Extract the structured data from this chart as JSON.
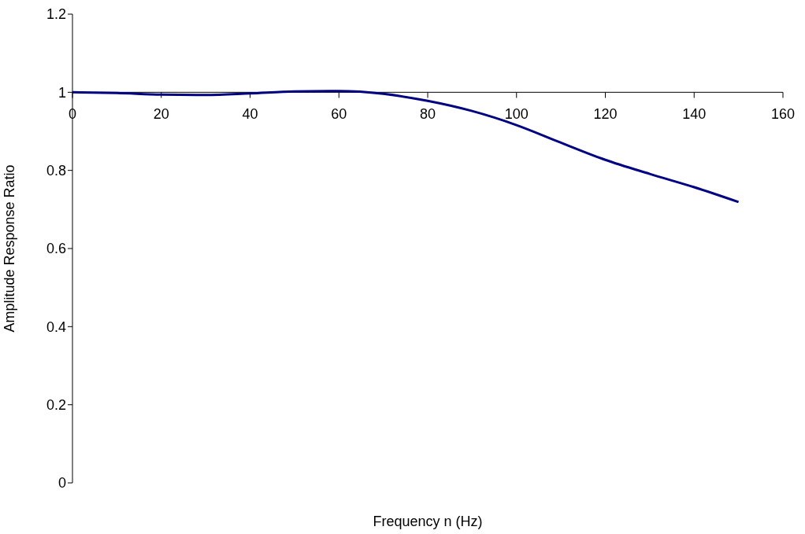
{
  "chart_data": {
    "type": "line",
    "xlabel": "Frequency n (Hz)",
    "ylabel": "Amplitude Response Ratio",
    "x": [
      0,
      10,
      20,
      30,
      40,
      50,
      60,
      70,
      80,
      90,
      100,
      110,
      120,
      130,
      140,
      150
    ],
    "series": [
      {
        "color": "#000080",
        "values": [
          1.0,
          0.998,
          0.994,
          0.993,
          0.997,
          1.002,
          1.003,
          0.996,
          0.978,
          0.952,
          0.916,
          0.871,
          0.827,
          0.791,
          0.757,
          0.719
        ]
      }
    ],
    "xlim": [
      0,
      160
    ],
    "xticks": [
      0,
      20,
      40,
      60,
      80,
      100,
      120,
      140,
      160
    ],
    "ylim": [
      0,
      1.2
    ],
    "yticks": [
      0,
      0.2,
      0.4,
      0.6,
      0.8,
      1,
      1.2
    ],
    "grid": false,
    "legend": false,
    "marker": "none",
    "line_style": "solid"
  }
}
